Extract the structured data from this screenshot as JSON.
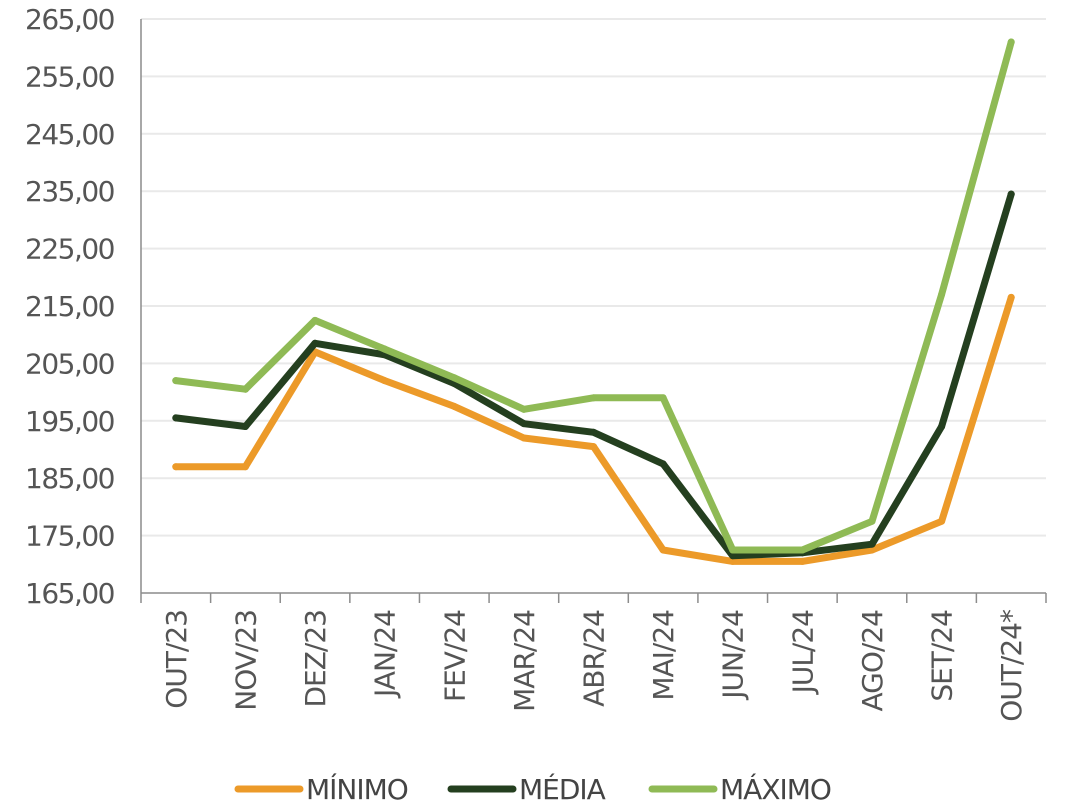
{
  "chart_data": {
    "type": "line",
    "title": "",
    "xlabel": "",
    "ylabel": "",
    "categories": [
      "OUT/23",
      "NOV/23",
      "DEZ/23",
      "JAN/24",
      "FEV/24",
      "MAR/24",
      "ABR/24",
      "MAI/24",
      "JUN/24",
      "JUL/24",
      "AGO/24",
      "SET/24",
      "OUT/24*"
    ],
    "ylim": [
      165,
      265
    ],
    "ytick_values": [
      165,
      175,
      185,
      195,
      205,
      215,
      225,
      235,
      245,
      255,
      265
    ],
    "ytick_labels": [
      "165,00",
      "175,00",
      "185,00",
      "195,00",
      "205,00",
      "215,00",
      "225,00",
      "235,00",
      "245,00",
      "255,00",
      "265,00"
    ],
    "grid": true,
    "legend_position": "bottom",
    "series": [
      {
        "name": "MÍNIMO",
        "color": "#ec9a29",
        "values": [
          187,
          187,
          207,
          202,
          197.5,
          192,
          190.5,
          172.5,
          170.5,
          170.5,
          172.5,
          177.5,
          216.5
        ]
      },
      {
        "name": "MÉDIA",
        "color": "#243f1f",
        "values": [
          195.5,
          194,
          208.5,
          206.5,
          201.5,
          194.5,
          193,
          187.5,
          171.5,
          172,
          173.5,
          194,
          234.5
        ]
      },
      {
        "name": "MÁXIMO",
        "color": "#8fba55",
        "values": [
          202,
          200.5,
          212.5,
          207.5,
          202.5,
          197,
          199,
          199,
          172.5,
          172.5,
          177.5,
          217,
          261
        ]
      }
    ]
  }
}
